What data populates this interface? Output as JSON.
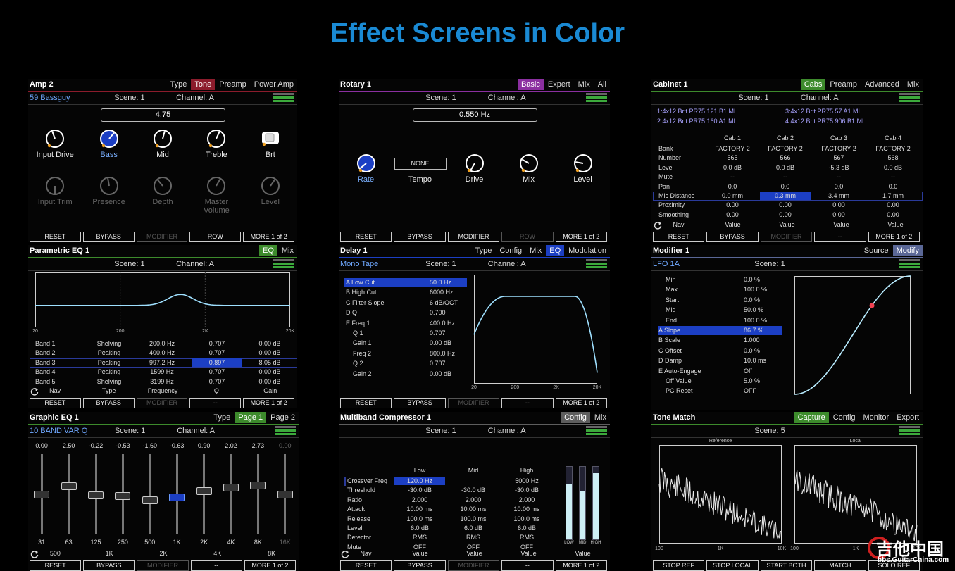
{
  "title": "Effect Screens in Color",
  "panels": [
    {
      "type": "knobs",
      "name": "Amp 2",
      "type_label": "Type",
      "tabs": [
        "Tone",
        "Preamp",
        "Power Amp"
      ],
      "active_tab": 0,
      "accent": "#8c1c2c",
      "preset": "59 Bassguy",
      "scene": "Scene: 1",
      "channel": "Channel: A",
      "value": "4.75",
      "knob_rows": [
        [
          {
            "label": "Input Drive"
          },
          {
            "label": "Bass"
          },
          {
            "label": "Mid"
          },
          {
            "label": "Treble"
          },
          {
            "label": "Brt",
            "control": "switch"
          }
        ],
        [
          {
            "label": "Input Trim"
          },
          {
            "label": "Presence"
          },
          {
            "label": "Depth"
          },
          {
            "label": "Master Volume"
          },
          {
            "label": "Level"
          }
        ]
      ],
      "selected_knob": 1,
      "dimmed_rows": [
        1
      ],
      "buttons": [
        "RESET",
        "BYPASS",
        "MODIFIER",
        "ROW",
        "MORE 1 of 2"
      ],
      "disabled_buttons": [
        2
      ]
    },
    {
      "type": "eq",
      "name": "Parametric EQ 1",
      "tabs": [
        "EQ",
        "Mix"
      ],
      "active_tab": 0,
      "accent": "#3d8b2c",
      "scene": "Scene: 1",
      "channel": "Channel: A",
      "graph_labels": [
        "20",
        "200",
        "2K",
        "20K"
      ],
      "rows": [
        [
          "Band 1",
          "Shelving",
          "200.0 Hz",
          "0.707",
          "0.00 dB"
        ],
        [
          "Band 2",
          "Peaking",
          "400.0 Hz",
          "0.707",
          "0.00 dB"
        ],
        [
          "Band 3",
          "Peaking",
          "997.2 Hz",
          "0.897",
          "8.05 dB"
        ],
        [
          "Band 4",
          "Peaking",
          "1599 Hz",
          "0.707",
          "0.00 dB"
        ],
        [
          "Band 5",
          "Shelving",
          "3199 Hz",
          "0.707",
          "0.00 dB"
        ]
      ],
      "selected_row": 2,
      "selected_column": 3,
      "nav": [
        "Nav",
        "Type",
        "Frequency",
        "Q",
        "Gain"
      ],
      "buttons": [
        "RESET",
        "BYPASS",
        "MODIFIER",
        "--",
        "MORE 1 of 2"
      ],
      "disabled_buttons": [
        2
      ]
    },
    {
      "type": "faders",
      "name": "Graphic EQ 1",
      "type_label": "Type",
      "tabs": [
        "Page 1",
        "Page 2"
      ],
      "active_tab": 0,
      "accent": "#3d8b2c",
      "preset": "10 BAND VAR Q",
      "scene": "Scene: 1",
      "channel": "Channel: A",
      "fader_values": [
        "0.00",
        "2.50",
        "-0.22",
        "-0.53",
        "-1.60",
        "-0.63",
        "0.90",
        "2.02",
        "2.73",
        "0.00"
      ],
      "bands": [
        "31",
        "63",
        "125",
        "250",
        "500",
        "1K",
        "2K",
        "4K",
        "8K",
        "16K"
      ],
      "selected_fader": 5,
      "nav": [
        "500",
        "1K",
        "2K",
        "4K",
        "8K"
      ],
      "buttons": [
        "RESET",
        "BYPASS",
        "MODIFIER",
        "--",
        "MORE 1 of 2"
      ],
      "disabled_buttons": [
        2
      ]
    },
    {
      "type": "knobs",
      "name": "Rotary 1",
      "tabs": [
        "Basic",
        "Expert",
        "Mix",
        "All"
      ],
      "active_tab": 0,
      "accent": "#8b2fa0",
      "scene": "Scene: 1",
      "channel": "Channel: A",
      "value": "0.550 Hz",
      "knob_rows": [
        [
          {
            "label": "Rate"
          },
          {
            "label": "Tempo",
            "display": "NONE"
          },
          {
            "label": "Drive"
          },
          {
            "label": "Mix"
          },
          {
            "label": "Level"
          }
        ]
      ],
      "selected_knob": 0,
      "buttons": [
        "RESET",
        "BYPASS",
        "MODIFIER",
        "ROW",
        "MORE 1 of 2"
      ],
      "disabled_buttons": [
        3
      ]
    },
    {
      "type": "delay",
      "name": "Delay 1",
      "type_label": "Type",
      "tabs": [
        "Config",
        "Mix",
        "EQ",
        "Modulation"
      ],
      "active_tab": 2,
      "accent": "#1c3fc4",
      "preset": "Mono Tape",
      "scene": "Scene: 1",
      "channel": "Channel: A",
      "rows": [
        [
          "A Low Cut",
          "50.0 Hz"
        ],
        [
          "B High Cut",
          "6000 Hz"
        ],
        [
          "C Filter Slope",
          "6 dB/OCT"
        ],
        [
          "D Q",
          "0.700"
        ],
        [
          "E Freq 1",
          "400.0 Hz"
        ],
        [
          "Q 1",
          "0.707"
        ],
        [
          "Gain 1",
          "0.00 dB"
        ],
        [
          "Freq 2",
          "800.0 Hz"
        ],
        [
          "Q 2",
          "0.707"
        ],
        [
          "Gain 2",
          "0.00 dB"
        ]
      ],
      "selected_row": 0,
      "graph_labels": [
        "20",
        "200",
        "2K",
        "20K"
      ],
      "buttons": [
        "RESET",
        "BYPASS",
        "MODIFIER",
        "--",
        "MORE 1 of 2"
      ],
      "disabled_buttons": [
        2
      ]
    },
    {
      "type": "multiband",
      "name": "Multiband Compressor 1",
      "tabs": [
        "Config",
        "Mix"
      ],
      "active_tab": 0,
      "accent": "#5e5e5e",
      "scene": "Scene: 1",
      "channel": "Channel: A",
      "columns": [
        "Low",
        "Mid",
        "High"
      ],
      "rows": [
        [
          "Crossver Freq",
          "120.0 Hz",
          null,
          "5000 Hz"
        ],
        [
          "Threshold",
          "-30.0 dB",
          "-30.0 dB",
          "-30.0 dB"
        ],
        [
          "Ratio",
          "2.000",
          "2.000",
          "2.000"
        ],
        [
          "Attack",
          "10.00 ms",
          "10.00 ms",
          "10.00 ms"
        ],
        [
          "Release",
          "100.0 ms",
          "100.0 ms",
          "100.0 ms"
        ],
        [
          "Level",
          "6.0 dB",
          "6.0 dB",
          "6.0 dB"
        ],
        [
          "Detector",
          "RMS",
          "RMS",
          "RMS"
        ],
        [
          "Mute",
          "OFF",
          "OFF",
          "OFF"
        ]
      ],
      "selected_row": 0,
      "selected_column": 1,
      "meter_labels": [
        "LOW",
        "MID",
        "HIGH"
      ],
      "nav": [
        "Nav",
        "Value",
        "Value",
        "Value",
        "Value"
      ],
      "buttons": [
        "RESET",
        "BYPASS",
        "MODIFIER",
        "--",
        "MORE 1 of 2"
      ],
      "disabled_buttons": [
        2
      ]
    },
    {
      "type": "cabinet",
      "name": "Cabinet 1",
      "tabs": [
        "Cabs",
        "Preamp",
        "Advanced",
        "Mix"
      ],
      "active_tab": 0,
      "accent": "#3d8b2c",
      "scene": "Scene: 1",
      "channel": "Channel: A",
      "cab_list": [
        "1:4x12 Brit PR75 121 B1 ML",
        "3:4x12 Brit PR75 57 A1 ML",
        "2:4x12 Brit PR75 160 A1 ML",
        "4:4x12 Brit PR75 906 B1 ML"
      ],
      "columns": [
        "Cab 1",
        "Cab 2",
        "Cab 3",
        "Cab 4"
      ],
      "rows": [
        [
          "Bank",
          "FACTORY 2",
          "FACTORY 2",
          "FACTORY 2",
          "FACTORY 2"
        ],
        [
          "Number",
          "565",
          "566",
          "567",
          "568"
        ],
        [
          "Level",
          "0.0 dB",
          "0.0 dB",
          "-5.3 dB",
          "0.0 dB"
        ],
        [
          "Mute",
          "--",
          "--",
          "--",
          "--"
        ],
        [
          "Pan",
          "0.0",
          "0.0",
          "0.0",
          "0.0"
        ],
        [
          "Mic Distance",
          "0.0 mm",
          "0.3 mm",
          "3.4 mm",
          "1.7 mm"
        ],
        [
          "Proximity",
          "0.00",
          "0.00",
          "0.00",
          "0.00"
        ],
        [
          "Smoothing",
          "0.00",
          "0.00",
          "0.00",
          "0.00"
        ]
      ],
      "selected_row": 5,
      "selected_column": 2,
      "nav": [
        "Nav",
        "Value",
        "Value",
        "Value",
        "Value"
      ],
      "buttons": [
        "RESET",
        "BYPASS",
        "MODIFIER",
        "--",
        "MORE 1 of 2"
      ],
      "disabled_buttons": [
        2
      ]
    },
    {
      "type": "modifier",
      "name": "Modifier 1",
      "tabs": [
        "Source",
        "Modify"
      ],
      "active_tab": 1,
      "accent": "#5a6796",
      "preset": "LFO 1A",
      "scene": "Scene: 1",
      "rows": [
        [
          "Min",
          "0.0 %"
        ],
        [
          "Max",
          "100.0 %"
        ],
        [
          "Start",
          "0.0 %"
        ],
        [
          "Mid",
          "50.0 %"
        ],
        [
          "End",
          "100.0 %"
        ],
        [
          "A Slope",
          "86.7 %"
        ],
        [
          "B Scale",
          "1.000"
        ],
        [
          "C Offset",
          "0.0 %"
        ],
        [
          "D Damp",
          "10.0 ms"
        ],
        [
          "E Auto-Engage",
          "Off"
        ],
        [
          "Off Value",
          "5.0 %"
        ],
        [
          "PC Reset",
          "OFF"
        ]
      ],
      "selected_row": 5
    },
    {
      "type": "tonematch",
      "name": "Tone Match",
      "tabs": [
        "Capture",
        "Config",
        "Monitor",
        "Export"
      ],
      "active_tab": 0,
      "accent": "#3d8b2c",
      "scene": "Scene: 5",
      "graph_titles": [
        "Reference",
        "Local"
      ],
      "axis_labels": [
        "100",
        "1K",
        "10K"
      ],
      "buttons": [
        "STOP REF",
        "STOP LOCAL",
        "START BOTH",
        "MATCH",
        "SOLO REF"
      ]
    }
  ],
  "watermark": {
    "name": "吉他中国",
    "site": "bbs.GuitarChina.com"
  }
}
